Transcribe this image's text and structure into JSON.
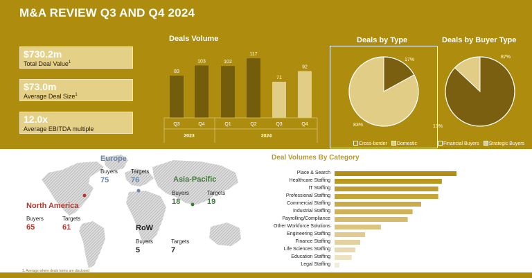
{
  "page": {
    "title": "M&A REVIEW Q3 AND Q4 2024"
  },
  "kpis": [
    {
      "value": "$730.2m",
      "label": "Total Deal Value",
      "sup": "1"
    },
    {
      "value": "$73.0m",
      "label": "Average Deal Size",
      "sup": "1"
    },
    {
      "value": "12.0x",
      "label": "Average EBITDA multiple",
      "sup": ""
    }
  ],
  "chart_data": [
    {
      "type": "bar",
      "title": "Deals Volume",
      "categories": [
        "Q3",
        "Q4",
        "Q1",
        "Q2",
        "Q3",
        "Q4"
      ],
      "groups": [
        {
          "label": "2023",
          "categories": [
            0,
            1
          ]
        },
        {
          "label": "2024",
          "categories": [
            2,
            3,
            4,
            5
          ]
        }
      ],
      "values": [
        83,
        103,
        102,
        117,
        71,
        92
      ],
      "bar_colors": [
        "#735c0b",
        "#735c0b",
        "#735c0b",
        "#735c0b",
        "#e2cd87",
        "#e2cd87"
      ]
    },
    {
      "type": "pie",
      "title": "Deals by Type",
      "labels": [
        "Cross-border",
        "Domestic"
      ],
      "values": [
        17,
        83
      ],
      "value_labels": [
        "17%",
        "83%"
      ],
      "colors": [
        "#7a5f10",
        "#e2cd87"
      ],
      "legend_position": "bottom"
    },
    {
      "type": "pie",
      "title": "Deals by Buyer Type",
      "labels": [
        "Financial Buyers",
        "Strategic Buyers"
      ],
      "values": [
        87,
        13
      ],
      "value_labels": [
        "87%",
        "13%"
      ],
      "colors": [
        "#7a5f10",
        "#e2cd87"
      ],
      "legend_position": "bottom"
    },
    {
      "type": "bar",
      "orientation": "horizontal",
      "title": "Deal Volumes By Category",
      "categories": [
        "Place & Search",
        "Healthcare Staffing",
        "IT Staffing",
        "Professional Staffing",
        "Commercial Staffing",
        "Industrial Staffing",
        "Payrolling/Compliance",
        "Other Workforce Solutions",
        "Engineering Staffing",
        "Finance Staffing",
        "Life Sciences Staffing",
        "Education Staffing",
        "Legal Staffing"
      ],
      "values": [
        100,
        88,
        85,
        85,
        71,
        64,
        60,
        38,
        25,
        21,
        17,
        14,
        4
      ],
      "colors": [
        "#b18f16",
        "#b9991f",
        "#bf9e2f",
        "#c4a538",
        "#c9ab49",
        "#cfb259",
        "#d4ba69",
        "#dac47f",
        "#dfcb8f",
        "#e3d19e",
        "#e8d9b0",
        "#ede2c2",
        "#f3ecd8"
      ]
    }
  ],
  "regions": {
    "europe": {
      "name": "Europe",
      "buyers_label": "Buyers",
      "targets_label": "Targets",
      "buyers": "75",
      "targets": "76",
      "color": "#6a86a8"
    },
    "asia_pacific": {
      "name": "Asia-Pacific",
      "buyers_label": "Buyers",
      "targets_label": "Targets",
      "buyers": "18",
      "targets": "19",
      "color": "#3f7a3a"
    },
    "north_america": {
      "name": "North America",
      "buyers_label": "Buyers",
      "targets_label": "Targets",
      "buyers": "65",
      "targets": "61",
      "color": "#b5382e"
    },
    "row": {
      "name": "RoW",
      "buyers_label": "Buyers",
      "targets_label": "Targets",
      "buyers": "5",
      "targets": "7",
      "color": "#1e1e1e"
    }
  },
  "footnote": "1. Average where deals terms are disclosed"
}
